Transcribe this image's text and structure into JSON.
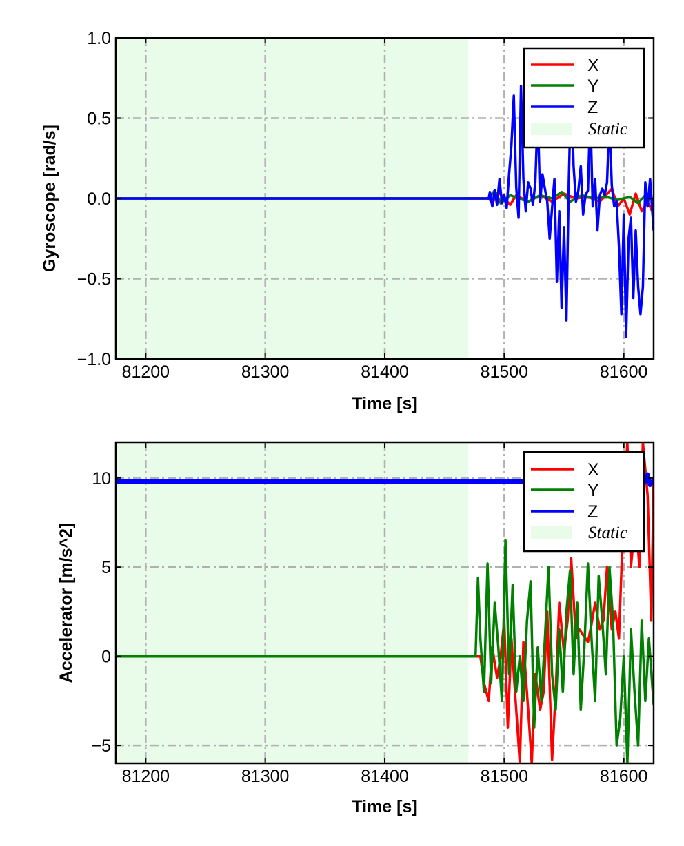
{
  "chart_data": [
    {
      "type": "line",
      "xlabel": "Time [s]",
      "ylabel": "Gyroscope [rad/s]",
      "xlim": [
        81175,
        81625
      ],
      "ylim": [
        -1.0,
        1.0
      ],
      "xticks": [
        81200,
        81300,
        81400,
        81500,
        81600
      ],
      "xtick_labels": [
        "81200",
        "81300",
        "81400",
        "81500",
        "81600"
      ],
      "yticks": [
        -1.0,
        -0.5,
        0.0,
        0.5,
        1.0
      ],
      "ytick_labels": [
        "−1.0",
        "−0.5",
        "0.0",
        "0.5",
        "1.0"
      ],
      "grid": true,
      "legend_position": "top-right",
      "static_region": {
        "label": "Static",
        "x": [
          81175,
          81470
        ],
        "color": "#e9fbe9"
      },
      "series": [
        {
          "name": "X",
          "color": "#ff0000",
          "x": [
            81175,
            81487,
            81490,
            81495,
            81500,
            81505,
            81510,
            81515,
            81520,
            81530,
            81540,
            81550,
            81560,
            81570,
            81580,
            81590,
            81595,
            81600,
            81605,
            81610,
            81615,
            81620,
            81625
          ],
          "y": [
            0.0,
            0.0,
            -0.03,
            0.04,
            0.0,
            -0.04,
            0.02,
            0.0,
            -0.02,
            0.02,
            -0.02,
            0.03,
            0.0,
            0.01,
            -0.02,
            0.06,
            -0.05,
            0.0,
            -0.1,
            0.03,
            -0.08,
            -0.02,
            -0.1
          ]
        },
        {
          "name": "Y",
          "color": "#008000",
          "x": [
            81175,
            81487,
            81492,
            81497,
            81505,
            81512,
            81520,
            81530,
            81540,
            81548,
            81555,
            81565,
            81575,
            81585,
            81595,
            81605,
            81612,
            81618,
            81625
          ],
          "y": [
            0.0,
            0.0,
            0.05,
            -0.03,
            0.02,
            0.0,
            -0.02,
            0.02,
            0.0,
            0.04,
            -0.02,
            0.02,
            0.0,
            0.01,
            -0.01,
            0.01,
            -0.03,
            0.02,
            -0.01
          ]
        },
        {
          "name": "Z",
          "color": "#0000ff",
          "x": [
            81175,
            81487,
            81488,
            81490,
            81492,
            81494,
            81496,
            81498,
            81500,
            81502,
            81504,
            81506,
            81508,
            81510,
            81512,
            81514,
            81516,
            81518,
            81520,
            81522,
            81524,
            81526,
            81528,
            81530,
            81532,
            81534,
            81536,
            81538,
            81540,
            81542,
            81544,
            81546,
            81548,
            81550,
            81552,
            81554,
            81556,
            81558,
            81560,
            81562,
            81564,
            81566,
            81568,
            81570,
            81572,
            81574,
            81576,
            81578,
            81580,
            81582,
            81584,
            81586,
            81588,
            81590,
            81592,
            81594,
            81596,
            81598,
            81600,
            81602,
            81604,
            81606,
            81608,
            81610,
            81612,
            81614,
            81616,
            81618,
            81620,
            81622,
            81625
          ],
          "y": [
            0.0,
            0.0,
            0.04,
            -0.05,
            0.05,
            -0.04,
            0.12,
            -0.03,
            0.02,
            -0.06,
            0.15,
            0.33,
            0.64,
            0.07,
            -0.12,
            0.7,
            0.12,
            -0.08,
            0.1,
            0.06,
            -0.04,
            0.1,
            0.55,
            -0.02,
            0.15,
            0.06,
            -0.02,
            -0.25,
            -0.06,
            0.12,
            -0.52,
            -0.08,
            -0.68,
            -0.18,
            -0.76,
            0.1,
            0.72,
            0.2,
            -0.02,
            0.05,
            0.2,
            -0.1,
            0.02,
            0.05,
            0.55,
            -0.05,
            0.12,
            -0.2,
            0.02,
            0.06,
            0.02,
            0.1,
            0.5,
            0.08,
            -0.05,
            -0.02,
            -0.3,
            -0.72,
            -0.1,
            -0.86,
            -0.25,
            -0.12,
            -0.62,
            -0.2,
            -0.55,
            -0.72,
            -0.55,
            0.1,
            -0.05,
            0.12,
            -0.2
          ]
        }
      ]
    },
    {
      "type": "line",
      "xlabel": "Time [s]",
      "ylabel": "Accelerator [m/s^2]",
      "xlim": [
        81175,
        81625
      ],
      "ylim": [
        -6.0,
        12.0
      ],
      "xticks": [
        81200,
        81300,
        81400,
        81500,
        81600
      ],
      "xtick_labels": [
        "81200",
        "81300",
        "81400",
        "81500",
        "81600"
      ],
      "yticks": [
        -5,
        0,
        5,
        10
      ],
      "ytick_labels": [
        "−5",
        "0",
        "5",
        "10"
      ],
      "grid": true,
      "legend_position": "top-right",
      "static_region": {
        "label": "Static",
        "x": [
          81175,
          81470
        ],
        "color": "#e9fbe9"
      },
      "series": [
        {
          "name": "X",
          "color": "#ff0000",
          "x": [
            81175,
            81480,
            81483,
            81487,
            81490,
            81494,
            81497,
            81500,
            81503,
            81506,
            81510,
            81513,
            81516,
            81520,
            81523,
            81526,
            81530,
            81533,
            81536,
            81540,
            81543,
            81546,
            81550,
            81553,
            81556,
            81560,
            81563,
            81566,
            81570,
            81573,
            81576,
            81580,
            81583,
            81586,
            81590,
            81593,
            81596,
            81600,
            81603,
            81606,
            81610,
            81613,
            81616,
            81620,
            81623,
            81625
          ],
          "y": [
            0.0,
            0.0,
            -1.5,
            -2.5,
            0.5,
            -1.2,
            0.0,
            2.0,
            -4.0,
            1.0,
            -3.0,
            -6.0,
            0.8,
            -3.0,
            -6.0,
            -1.0,
            -3.0,
            -2.0,
            2.5,
            -5.8,
            -2.0,
            3.0,
            0.2,
            2.0,
            5.5,
            1.0,
            1.5,
            1.2,
            0.8,
            1.8,
            3.0,
            1.5,
            2.0,
            5.0,
            1.5,
            2.5,
            1.0,
            8.5,
            12.0,
            5.0,
            8.0,
            5.0,
            12.0,
            9.0,
            2.0,
            10.0
          ]
        },
        {
          "name": "Y",
          "color": "#008000",
          "x": [
            81175,
            81476,
            81478,
            81480,
            81483,
            81486,
            81489,
            81492,
            81495,
            81498,
            81501,
            81504,
            81507,
            81510,
            81513,
            81516,
            81519,
            81522,
            81525,
            81528,
            81531,
            81534,
            81537,
            81540,
            81543,
            81546,
            81549,
            81552,
            81555,
            81558,
            81561,
            81564,
            81567,
            81570,
            81573,
            81576,
            81579,
            81582,
            81585,
            81588,
            81591,
            81594,
            81597,
            81600,
            81603,
            81606,
            81609,
            81612,
            81615,
            81618,
            81621,
            81625
          ],
          "y": [
            0.0,
            0.0,
            4.4,
            1.0,
            -2.0,
            5.2,
            -1.5,
            3.0,
            0.5,
            -2.5,
            6.5,
            -1.0,
            4.0,
            -2.0,
            0.0,
            -2.5,
            2.0,
            4.2,
            -4.0,
            0.5,
            -2.5,
            1.0,
            5.0,
            -1.0,
            -3.0,
            1.5,
            -2.0,
            2.5,
            4.8,
            -1.0,
            3.0,
            -3.0,
            0.5,
            5.2,
            1.0,
            -2.5,
            4.5,
            2.0,
            -1.0,
            5.0,
            2.0,
            -5.0,
            -3.5,
            0.0,
            -6.0,
            1.5,
            -2.0,
            -5.0,
            2.0,
            -2.5,
            1.0,
            -2.7
          ]
        },
        {
          "name": "Z",
          "color": "#0000ff",
          "x": [
            81175,
            81500,
            81520,
            81540,
            81560,
            81580,
            81600,
            81610,
            81615,
            81618,
            81620,
            81622,
            81625
          ],
          "y": [
            9.8,
            9.8,
            9.8,
            9.8,
            9.8,
            9.8,
            9.8,
            9.8,
            9.8,
            9.8,
            10.2,
            9.6,
            9.9
          ]
        }
      ]
    }
  ]
}
